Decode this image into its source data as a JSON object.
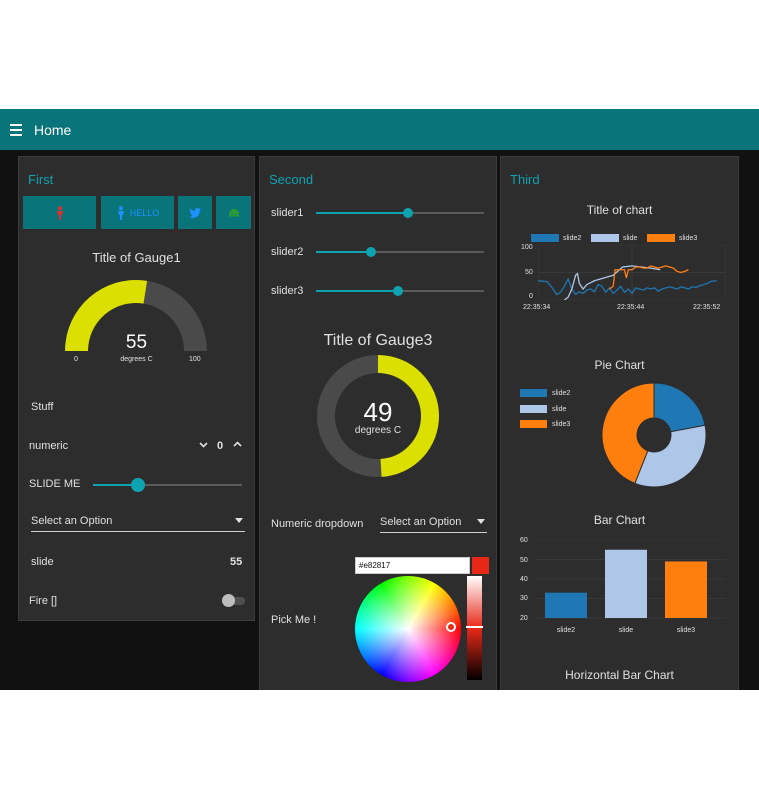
{
  "header": {
    "title": "Home"
  },
  "colors": {
    "accent": "#0fa3b1",
    "header": "#097479",
    "gauge_fill": "#dbe000",
    "slide2": "#1f77b4",
    "slide": "#aec7e8",
    "slide3": "#ff7f0e"
  },
  "first": {
    "title": "First",
    "buttons": [
      {
        "icon": "person-icon",
        "label": ""
      },
      {
        "icon": "person-icon",
        "label": "HELLO"
      },
      {
        "icon": "twitter-icon",
        "label": ""
      },
      {
        "icon": "android-icon",
        "label": ""
      }
    ],
    "gauge": {
      "title": "Title of Gauge1",
      "value": "55",
      "units": "degrees C",
      "min": "0",
      "max": "100",
      "fraction": 0.55
    },
    "stuff_label": "Stuff",
    "numeric": {
      "label": "numeric",
      "value": "0"
    },
    "slide_me": {
      "label": "SLIDE ME",
      "fraction": 0.3
    },
    "dropdown": {
      "placeholder": "Select an Option"
    },
    "slide_text": {
      "label": "slide",
      "value": "55"
    },
    "switch": {
      "label": "Fire []",
      "on": false
    }
  },
  "second": {
    "title": "Second",
    "sliders": [
      {
        "label": "slider1",
        "fraction": 0.55
      },
      {
        "label": "slider2",
        "fraction": 0.33
      },
      {
        "label": "slider3",
        "fraction": 0.49
      }
    ],
    "gauge": {
      "title": "Title of Gauge3",
      "value": "49",
      "units": "degrees C",
      "fraction": 0.49
    },
    "dropdown": {
      "label": "Numeric dropdown",
      "placeholder": "Select an Option"
    },
    "color_picker": {
      "label": "Pick Me !",
      "hex": "#e82817"
    }
  },
  "third": {
    "title": "Third",
    "line_chart_title": "Title of chart",
    "pie_chart_title": "Pie Chart",
    "bar_chart_title": "Bar Chart",
    "hbar_chart_title": "Horizontal Bar Chart"
  },
  "chart_data": [
    {
      "type": "line",
      "title": "Title of chart",
      "legend": "top",
      "ylim": [
        0,
        100
      ],
      "yticks": [
        "100",
        "50",
        "0"
      ],
      "xticks": [
        "22:35:34",
        "22:35:44",
        "22:35:52"
      ],
      "series": [
        {
          "name": "slide2",
          "color": "#1f77b4",
          "x": [
            0,
            3,
            5,
            8,
            10,
            12,
            14,
            16,
            18,
            20,
            22,
            24,
            26,
            28,
            30,
            32,
            34,
            36,
            38,
            40,
            42,
            44,
            46,
            48,
            50,
            52,
            54,
            56,
            58,
            60,
            62,
            64,
            66,
            68,
            70,
            72,
            74,
            76,
            78,
            80,
            82,
            84,
            86,
            88,
            90,
            92,
            95
          ],
          "y": [
            35,
            34,
            33,
            20,
            10,
            14,
            25,
            38,
            20,
            10,
            15,
            12,
            18,
            20,
            15,
            28,
            25,
            14,
            22,
            12,
            18,
            25,
            14,
            20,
            12,
            22,
            20,
            18,
            22,
            20,
            22,
            16,
            20,
            22,
            24,
            22,
            20,
            24,
            22,
            20,
            24,
            23,
            26,
            28,
            30,
            34,
            35
          ]
        },
        {
          "name": "slide",
          "color": "#aec7e8",
          "x": [
            14,
            16,
            18,
            20,
            21,
            22,
            24,
            26,
            30,
            35,
            40,
            45,
            50,
            55,
            60,
            65
          ],
          "y": [
            0,
            5,
            20,
            45,
            48,
            30,
            20,
            28,
            35,
            40,
            45,
            60,
            62,
            60,
            58,
            55
          ]
        },
        {
          "name": "slide3",
          "color": "#ff7f0e",
          "x": [
            38,
            40,
            41,
            42,
            44,
            46,
            47,
            48,
            50,
            52,
            54,
            56,
            58,
            60,
            62,
            64,
            66,
            68,
            70,
            72,
            74,
            76,
            78,
            80
          ],
          "y": [
            20,
            25,
            55,
            55,
            55,
            55,
            40,
            55,
            55,
            60,
            60,
            58,
            58,
            62,
            60,
            58,
            60,
            62,
            60,
            58,
            52,
            50,
            52,
            55
          ]
        }
      ]
    },
    {
      "type": "pie",
      "title": "Pie Chart",
      "legend": "left",
      "categories": [
        "slide2",
        "slide",
        "slide3"
      ],
      "values": [
        22,
        34,
        44
      ],
      "colors": [
        "#1f77b4",
        "#aec7e8",
        "#ff7f0e"
      ]
    },
    {
      "type": "bar",
      "title": "Bar Chart",
      "categories": [
        "slide2",
        "slide",
        "slide3"
      ],
      "values": [
        33,
        55,
        49
      ],
      "colors": [
        "#1f77b4",
        "#aec7e8",
        "#ff7f0e"
      ],
      "ylim": [
        20,
        60
      ],
      "yticks": [
        "60",
        "50",
        "40",
        "30",
        "20"
      ]
    }
  ]
}
